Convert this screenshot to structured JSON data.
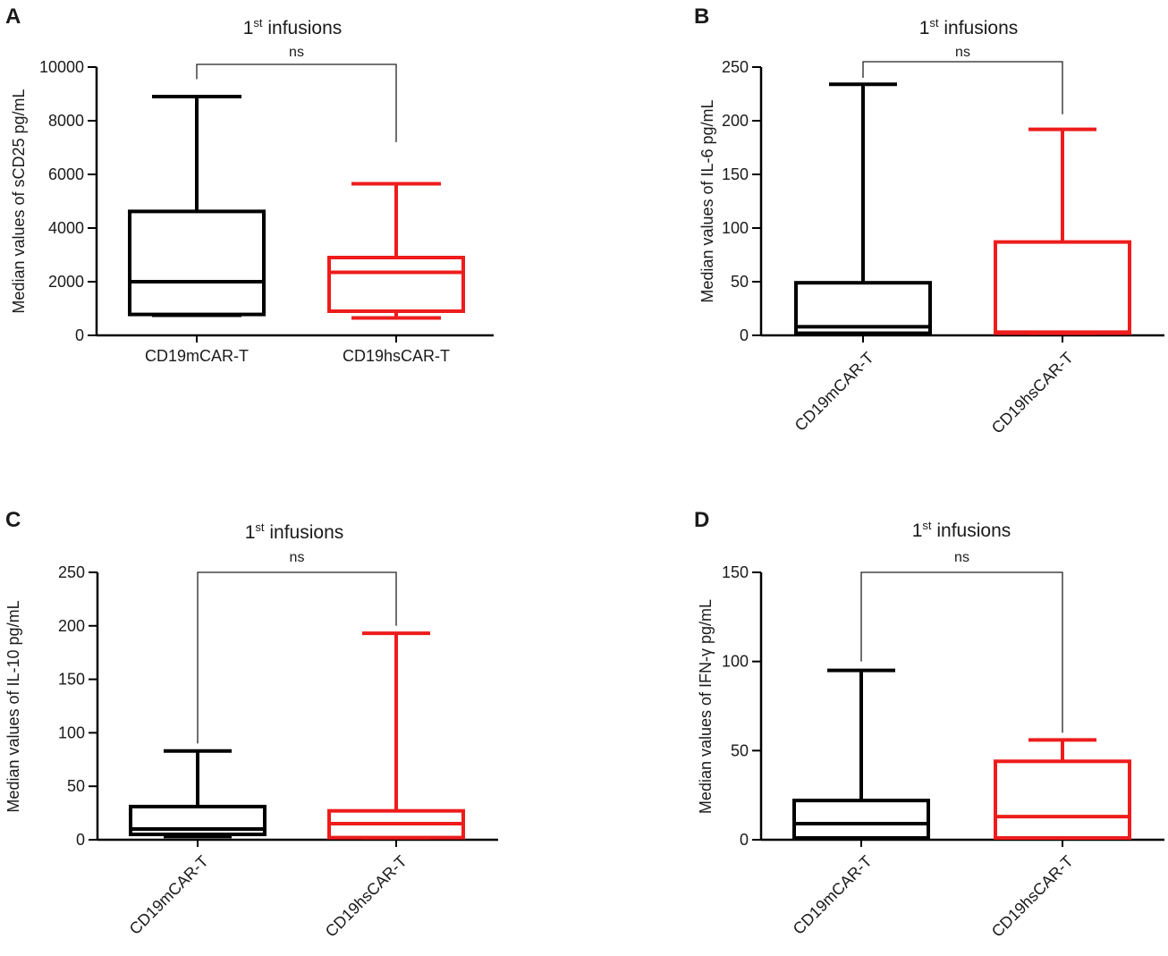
{
  "figure": {
    "panels": [
      "A",
      "B",
      "C",
      "D"
    ]
  },
  "chart_data": [
    {
      "type": "boxplot",
      "panel": "A",
      "title": "1st infusions",
      "title_main": "1",
      "title_sup": "st",
      "title_rest": " infusions",
      "ylabel": "Median values of sCD25 pg/mL",
      "ylim": [
        0,
        10000
      ],
      "yticks": [
        0,
        2000,
        4000,
        6000,
        8000,
        10000
      ],
      "tick_labels": [
        "0",
        "2000",
        "4000",
        "6000",
        "8000",
        "10000"
      ],
      "categories": [
        "CD19mCAR-T",
        "CD19hsCAR-T"
      ],
      "category_label_rotation": 0,
      "series": [
        {
          "name": "CD19mCAR-T",
          "color": "#000000",
          "min": 750,
          "q1": 780,
          "median": 2000,
          "q3": 4620,
          "max": 8900
        },
        {
          "name": "CD19hsCAR-T",
          "color": "#ee1c1c",
          "min": 650,
          "q1": 900,
          "median": 2350,
          "q3": 2900,
          "max": 5650
        }
      ],
      "significance": {
        "label": "ns",
        "left_bracket_value": 9550,
        "right_bracket_value": 7200,
        "bar_value": 10100
      }
    },
    {
      "type": "boxplot",
      "panel": "B",
      "title": "1st infusions",
      "title_main": "1",
      "title_sup": "st",
      "title_rest": " infusions",
      "ylabel": "Median values of IL-6 pg/mL",
      "ylim": [
        0,
        250
      ],
      "yticks": [
        0,
        50,
        100,
        150,
        200,
        250
      ],
      "tick_labels": [
        "0",
        "50",
        "100",
        "150",
        "200",
        "250"
      ],
      "categories": [
        "CD19mCAR-T",
        "CD19hsCAR-T"
      ],
      "category_label_rotation": -45,
      "series": [
        {
          "name": "CD19mCAR-T",
          "color": "#000000",
          "min": 2,
          "q1": 2,
          "median": 8,
          "q3": 49,
          "max": 234
        },
        {
          "name": "CD19hsCAR-T",
          "color": "#ee1c1c",
          "min": 2,
          "q1": 2,
          "median": 3,
          "q3": 87,
          "max": 192
        }
      ],
      "significance": {
        "label": "ns",
        "left_bracket_value": 240,
        "right_bracket_value": 206,
        "bar_value": 255
      }
    },
    {
      "type": "boxplot",
      "panel": "C",
      "title": "1st infusions",
      "title_main": "1",
      "title_sup": "st",
      "title_rest": " infusions",
      "ylabel": "Median values of IL-10 pg/mL",
      "ylim": [
        0,
        250
      ],
      "yticks": [
        0,
        50,
        100,
        150,
        200,
        250
      ],
      "tick_labels": [
        "0",
        "50",
        "100",
        "150",
        "200",
        "250"
      ],
      "categories": [
        "CD19mCAR-T",
        "CD19hsCAR-T"
      ],
      "category_label_rotation": -45,
      "series": [
        {
          "name": "CD19mCAR-T",
          "color": "#000000",
          "min": 3,
          "q1": 5,
          "median": 10,
          "q3": 31,
          "max": 83
        },
        {
          "name": "CD19hsCAR-T",
          "color": "#ee1c1c",
          "min": 2,
          "q1": 2,
          "median": 15,
          "q3": 27,
          "max": 193
        }
      ],
      "significance": {
        "label": "ns",
        "left_bracket_value": 90,
        "right_bracket_value": 200,
        "bar_value": 250
      }
    },
    {
      "type": "boxplot",
      "panel": "D",
      "title": "1st infusions",
      "title_main": "1",
      "title_sup": "st",
      "title_rest": " infusions",
      "ylabel": "Median values of IFN-γ  pg/mL",
      "ylim": [
        0,
        150
      ],
      "yticks": [
        0,
        50,
        100,
        150
      ],
      "tick_labels": [
        "0",
        "50",
        "100",
        "150"
      ],
      "categories": [
        "CD19mCAR-T",
        "CD19hsCAR-T"
      ],
      "category_label_rotation": -45,
      "series": [
        {
          "name": "CD19mCAR-T",
          "color": "#000000",
          "min": 1,
          "q1": 1,
          "median": 9,
          "q3": 22,
          "max": 95
        },
        {
          "name": "CD19hsCAR-T",
          "color": "#ee1c1c",
          "min": 1,
          "q1": 1,
          "median": 13,
          "q3": 44,
          "max": 56
        }
      ],
      "significance": {
        "label": "ns",
        "left_bracket_value": 100,
        "right_bracket_value": 60,
        "bar_value": 150
      }
    }
  ]
}
